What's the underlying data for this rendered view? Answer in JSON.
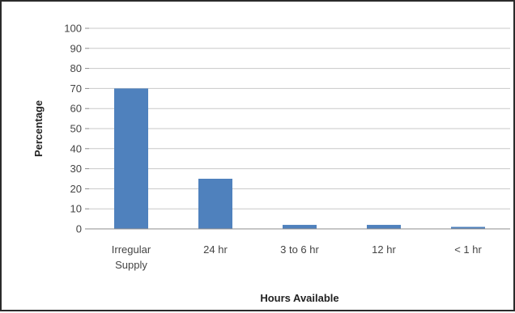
{
  "chart_data": {
    "type": "bar",
    "categories": [
      "Irregular Supply",
      "24 hr",
      "3 to 6 hr",
      "12 hr",
      "< 1 hr"
    ],
    "category_lines": [
      [
        "Irregular",
        "Supply"
      ],
      [
        "24 hr"
      ],
      [
        "3 to 6 hr"
      ],
      [
        "12 hr"
      ],
      [
        "< 1 hr"
      ]
    ],
    "values": [
      70,
      25,
      2,
      2,
      1
    ],
    "xlabel": "Hours Available",
    "ylabel": "Percentage",
    "ylim": [
      0,
      100
    ],
    "yticks": [
      0,
      10,
      20,
      30,
      40,
      50,
      60,
      70,
      80,
      90,
      100
    ],
    "grid": true,
    "legend": "none",
    "colors": {
      "bar": "#4f81bd",
      "grid": "#c8c8c8",
      "axis": "#8c8c8c"
    }
  }
}
